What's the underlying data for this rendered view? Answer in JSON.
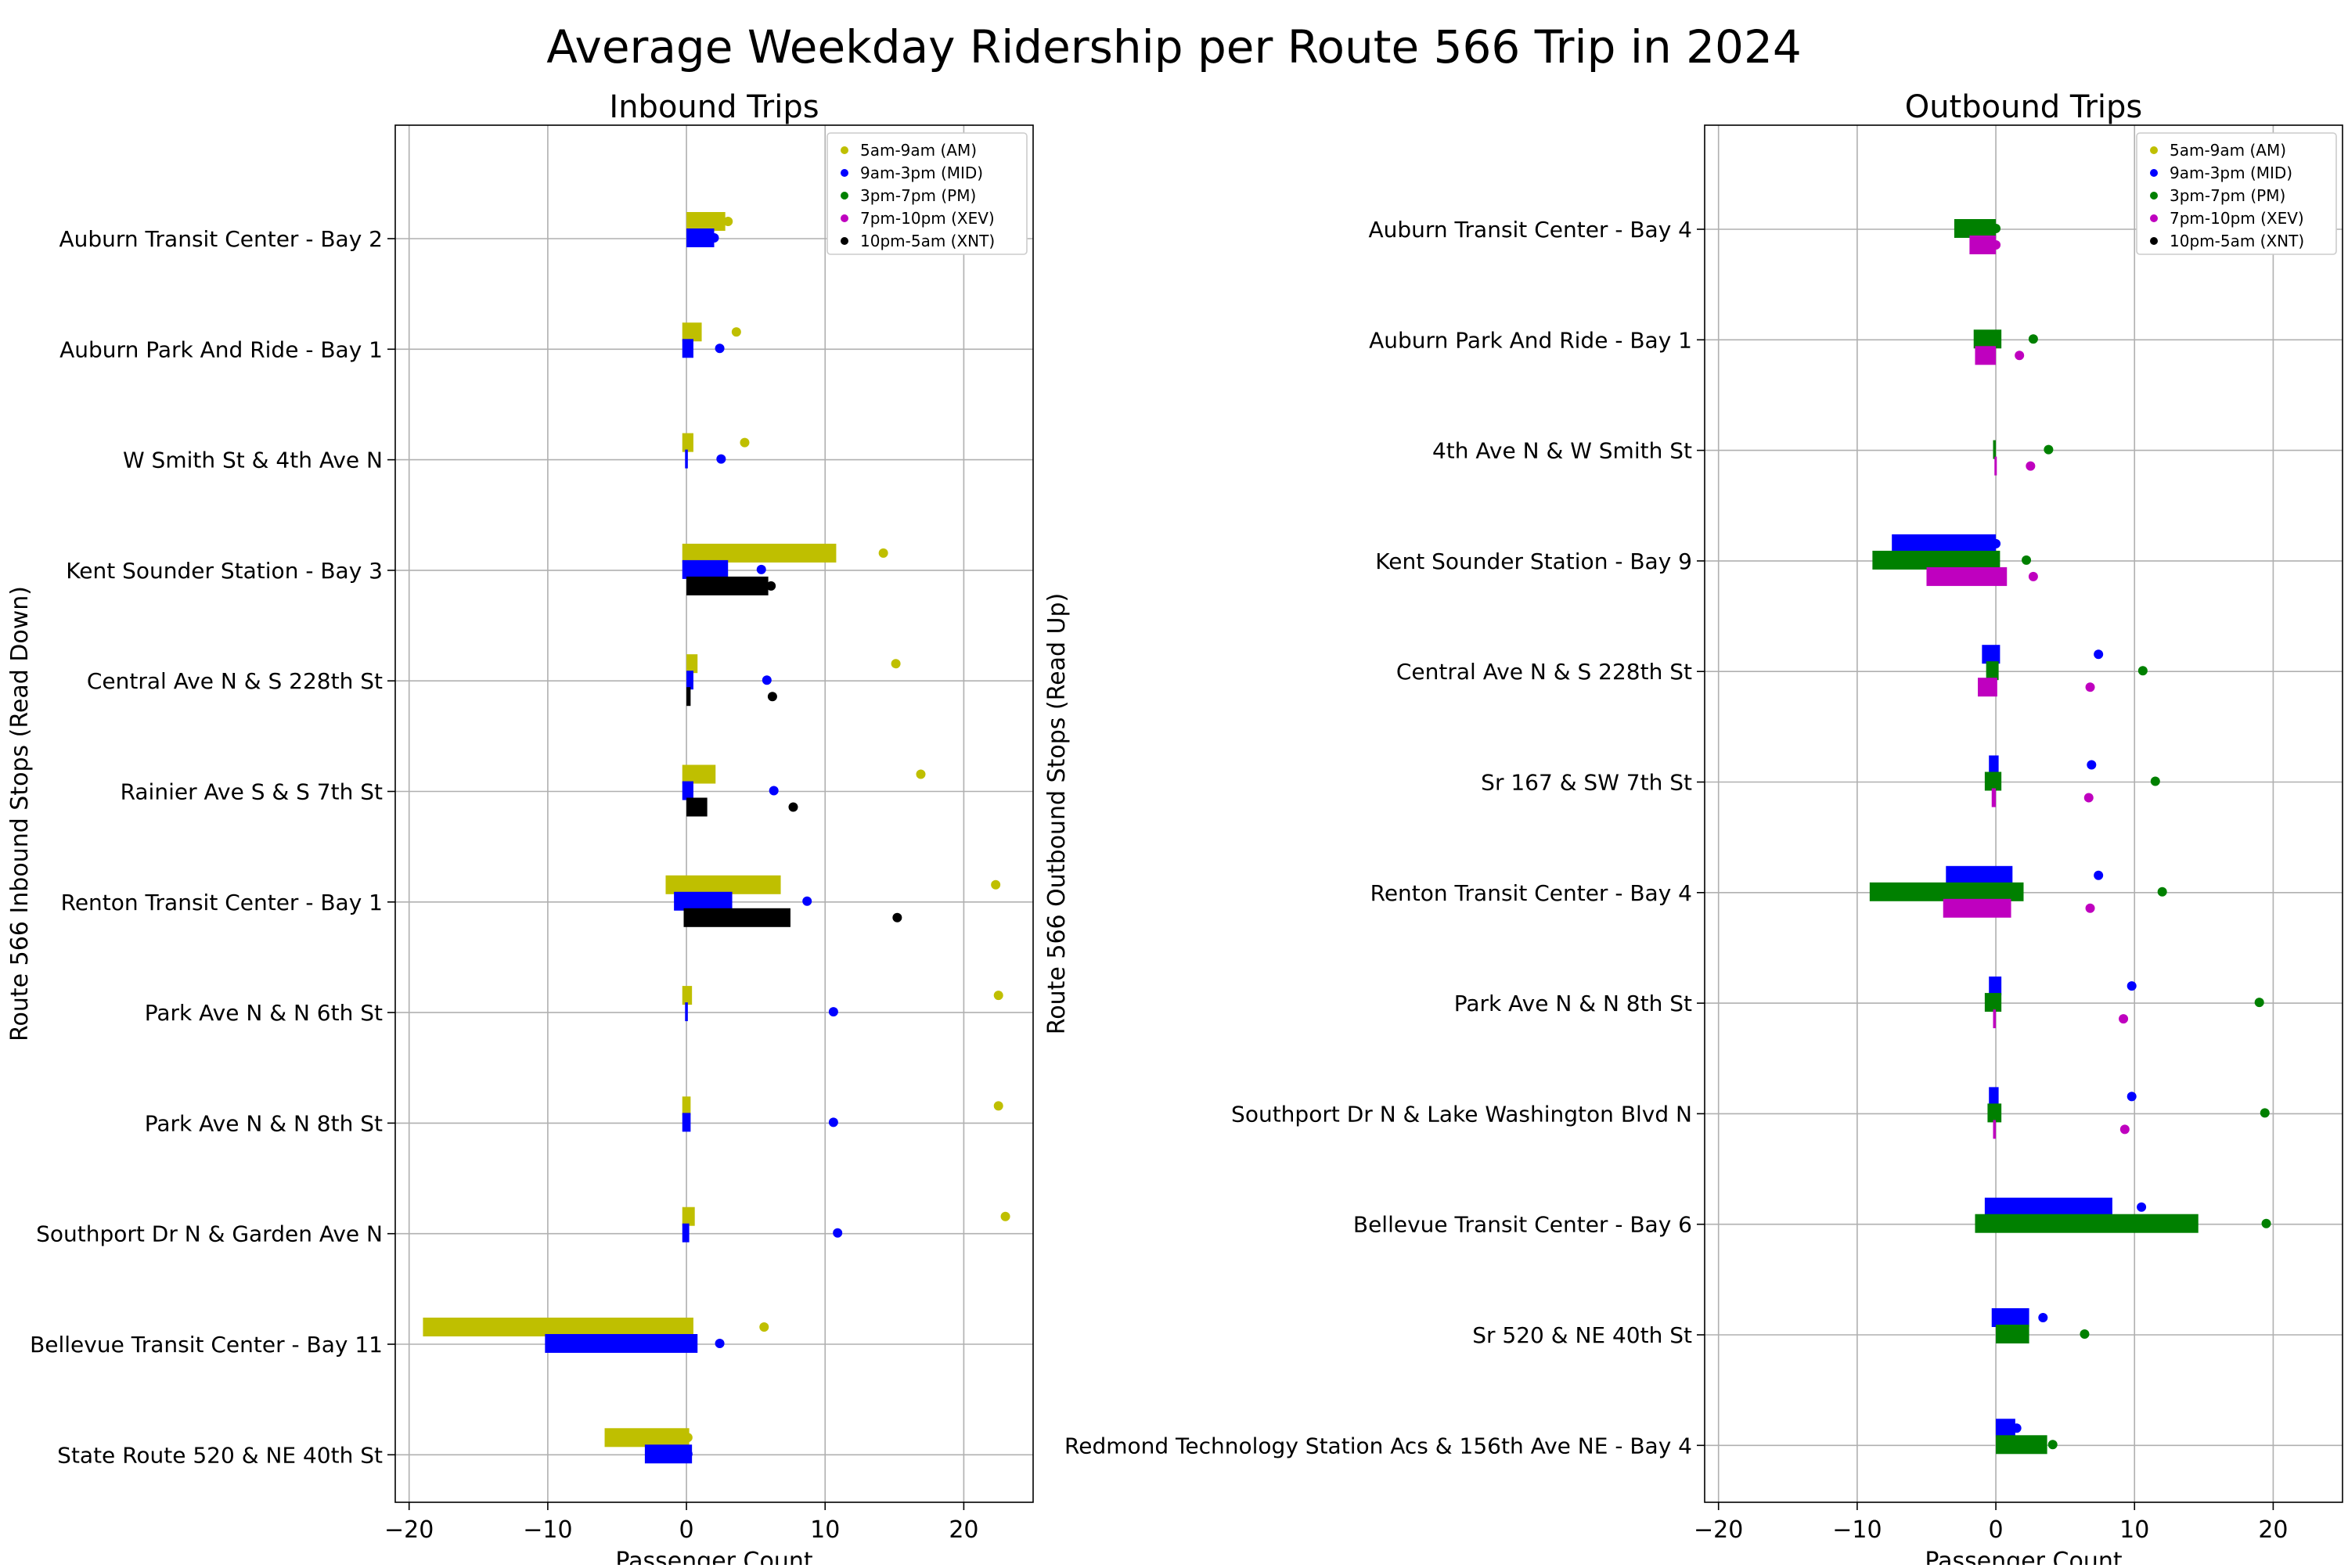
{
  "page_title": "Average Weekday Ridership per Route 566 Trip in 2024",
  "legend": [
    {
      "label": "5am-9am (AM)",
      "color": "#bfbf00"
    },
    {
      "label": "9am-3pm (MID)",
      "color": "#0000ff"
    },
    {
      "label": "3pm-7pm (PM)",
      "color": "#008000"
    },
    {
      "label": "7pm-10pm (XEV)",
      "color": "#bf00bf"
    },
    {
      "label": "10pm-5am (XNT)",
      "color": "#000000"
    }
  ],
  "chart_data": [
    {
      "type": "bar",
      "orientation": "horizontal",
      "title": "Inbound Trips",
      "xlabel": "Passenger Count",
      "ylabel": "Route 566 Inbound Stops (Read Down)",
      "xlim": [
        -21,
        25
      ],
      "xticks": [
        -20,
        -10,
        0,
        10,
        20
      ],
      "grid": true,
      "legend_position": "upper-right",
      "categories": [
        "Auburn Transit Center - Bay 2",
        "Auburn Park And Ride - Bay 1",
        "W Smith St & 4th Ave N",
        "Kent Sounder Station - Bay 3",
        "Central Ave N & S 228th St",
        "Rainier Ave S & S 7th St",
        "Renton Transit Center - Bay 1",
        "Park Ave N & N 6th St",
        "Park Ave N & N 8th St",
        "Southport Dr N & Garden Ave N",
        "Bellevue Transit Center - Bay 11",
        "State Route 520 & NE 40th St"
      ],
      "series": [
        {
          "name": "5am-9am (AM)",
          "color": "#bfbf00",
          "bars": [
            [
              0,
              2.8
            ],
            [
              -0.3,
              1.1
            ],
            [
              -0.3,
              0.5
            ],
            [
              -0.3,
              10.8
            ],
            [
              0,
              0.8
            ],
            [
              -0.3,
              2.1
            ],
            [
              -1.5,
              6.8
            ],
            [
              -0.3,
              0.4
            ],
            [
              -0.3,
              0.3
            ],
            [
              -0.3,
              0.6
            ],
            [
              -19,
              0.5
            ],
            [
              -5.9,
              0.2
            ]
          ],
          "points": [
            3.0,
            3.6,
            4.2,
            14.2,
            15.1,
            16.9,
            22.3,
            22.5,
            22.5,
            23.0,
            5.6,
            0.1
          ]
        },
        {
          "name": "9am-3pm (MID)",
          "color": "#0000ff",
          "bars": [
            [
              0,
              2.0
            ],
            [
              -0.3,
              0.5
            ],
            [
              -0.1,
              0.1
            ],
            [
              -0.3,
              3.0
            ],
            [
              0,
              0.5
            ],
            [
              -0.3,
              0.5
            ],
            [
              -0.9,
              3.3
            ],
            [
              -0.1,
              0.1
            ],
            [
              -0.3,
              0.3
            ],
            [
              -0.3,
              0.2
            ],
            [
              -10.2,
              0.8
            ],
            [
              -3.0,
              0.4
            ]
          ],
          "points": [
            2.0,
            2.4,
            2.5,
            5.4,
            5.8,
            6.3,
            8.7,
            10.6,
            10.6,
            10.9,
            2.4,
            0.1
          ]
        },
        {
          "name": "10pm-5am (XNT)",
          "color": "#000000",
          "bars": [
            [
              null,
              null
            ],
            [
              null,
              null
            ],
            [
              null,
              null
            ],
            [
              0,
              5.9
            ],
            [
              0,
              0.3
            ],
            [
              0,
              1.5
            ],
            [
              -0.2,
              7.5
            ],
            [
              null,
              null
            ],
            [
              null,
              null
            ],
            [
              null,
              null
            ],
            [
              null,
              null
            ],
            [
              null,
              null
            ]
          ],
          "points": [
            null,
            null,
            null,
            6.1,
            6.2,
            7.7,
            15.2,
            null,
            null,
            null,
            null,
            null
          ]
        }
      ]
    },
    {
      "type": "bar",
      "orientation": "horizontal",
      "title": "Outbound Trips",
      "xlabel": "Passenger Count",
      "ylabel": "Route 566 Outbound Stops (Read Up)",
      "xlim": [
        -21,
        25
      ],
      "xticks": [
        -20,
        -10,
        0,
        10,
        20
      ],
      "grid": true,
      "legend_position": "upper-right",
      "categories": [
        "Auburn Transit Center - Bay 4",
        "Auburn Park And Ride - Bay 1",
        "4th Ave N & W Smith St",
        "Kent Sounder Station - Bay 9",
        "Central Ave N & S 228th St",
        "Sr 167 & SW 7th St",
        "Renton Transit Center - Bay 4",
        "Park Ave N & N 8th St",
        "Southport Dr N & Lake Washington Blvd N",
        "Bellevue Transit Center - Bay 6",
        "Sr 520 & NE 40th St",
        "Redmond Technology Station Acs & 156th Ave NE - Bay 4"
      ],
      "series": [
        {
          "name": "9am-3pm (MID)",
          "color": "#0000ff",
          "bars": [
            [
              null,
              null
            ],
            [
              null,
              null
            ],
            [
              null,
              null
            ],
            [
              -7.5,
              0.0
            ],
            [
              -1.0,
              0.3
            ],
            [
              -0.5,
              0.2
            ],
            [
              -3.6,
              1.2
            ],
            [
              -0.5,
              0.4
            ],
            [
              -0.5,
              0.2
            ],
            [
              -0.8,
              8.4
            ],
            [
              -0.3,
              2.4
            ],
            [
              0.0,
              1.4
            ]
          ],
          "points": [
            null,
            null,
            null,
            0.0,
            7.4,
            6.9,
            7.4,
            9.8,
            9.8,
            10.5,
            3.4,
            1.5
          ]
        },
        {
          "name": "3pm-7pm (PM)",
          "color": "#008000",
          "bars": [
            [
              -3.0,
              0.0
            ],
            [
              -1.6,
              0.4
            ],
            [
              -0.2,
              0.0
            ],
            [
              -8.9,
              0.3
            ],
            [
              -0.7,
              0.2
            ],
            [
              -0.8,
              0.4
            ],
            [
              -9.1,
              2.0
            ],
            [
              -0.8,
              0.4
            ],
            [
              -0.6,
              0.4
            ],
            [
              -1.5,
              14.6
            ],
            [
              0.0,
              2.4
            ],
            [
              0.0,
              3.7
            ]
          ],
          "points": [
            0.0,
            2.7,
            3.8,
            2.2,
            10.6,
            11.5,
            12.0,
            19.0,
            19.4,
            19.5,
            6.4,
            4.1
          ]
        },
        {
          "name": "7pm-10pm (XEV)",
          "color": "#bf00bf",
          "bars": [
            [
              -1.9,
              0.0
            ],
            [
              -1.5,
              0.0
            ],
            [
              -0.1,
              0.0
            ],
            [
              -5.0,
              0.8
            ],
            [
              -1.3,
              0.1
            ],
            [
              -0.3,
              0.0
            ],
            [
              -3.8,
              1.1
            ],
            [
              -0.2,
              0.0
            ],
            [
              -0.2,
              0.0
            ],
            [
              null,
              null
            ],
            [
              null,
              null
            ],
            [
              null,
              null
            ]
          ],
          "points": [
            0.0,
            1.7,
            2.5,
            2.7,
            6.8,
            6.7,
            6.8,
            9.2,
            9.3,
            null,
            null,
            null
          ]
        }
      ]
    }
  ]
}
